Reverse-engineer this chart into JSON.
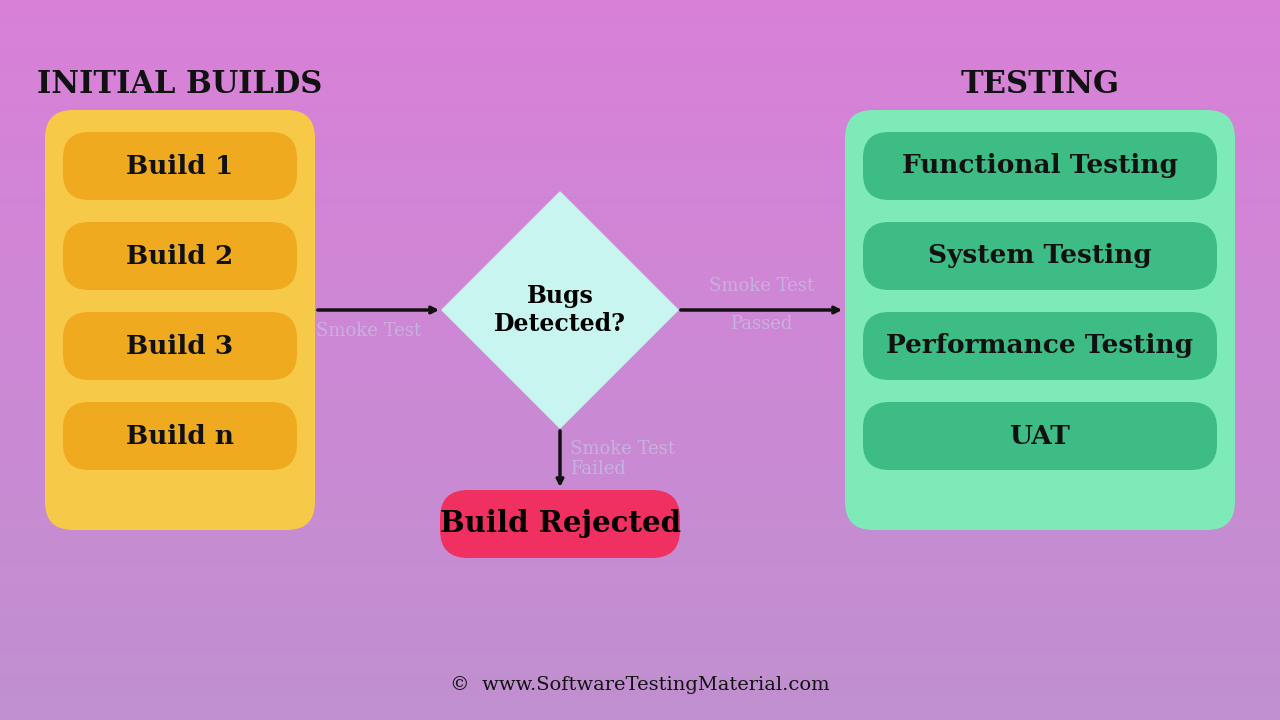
{
  "initial_builds_label": "INITIAL BUILDS",
  "testing_label": "TESTING",
  "builds": [
    "Build 1",
    "Build 2",
    "Build 3",
    "Build n"
  ],
  "tests": [
    "Functional Testing",
    "System Testing",
    "Performance Testing",
    "UAT"
  ],
  "diamond_text_1": "Bugs",
  "diamond_text_2": "Detected?",
  "arrow_label_left": "Smoke Test",
  "arrow_label_right_1": "Smoke Test",
  "arrow_label_right_2": "Passed",
  "arrow_label_down_1": "Smoke Test",
  "arrow_label_down_2": "Failed",
  "rejected_label": "Build Rejected",
  "footer": "©  www.SoftwareTestingMaterial.com",
  "bg_color_top": "#d980d8",
  "bg_color_bottom": "#c87dd0",
  "builds_box_color": "#f7c948",
  "build_item_color": "#f0aa20",
  "tests_box_color": "#7eeab8",
  "test_item_color": "#3dbd85",
  "diamond_color": "#c8f5f0",
  "rejected_color": "#f03060",
  "arrow_color": "#111111",
  "smoke_label_color": "#c8b0e0",
  "header_label_color": "#111111",
  "item_text_color": "#111111",
  "footer_color": "#111111"
}
